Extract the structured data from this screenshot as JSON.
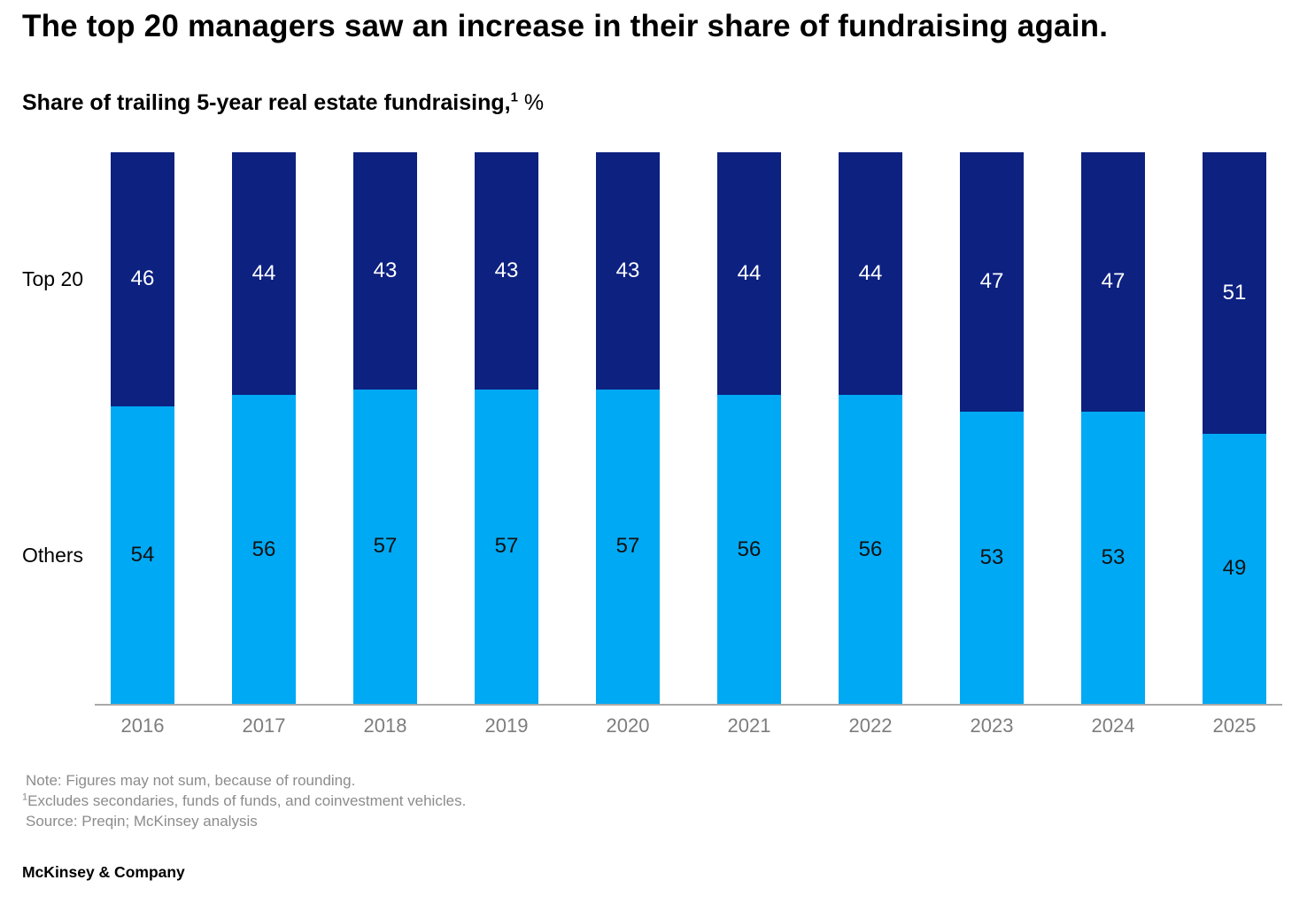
{
  "header": {
    "title": "The top 20 managers saw an increase in their share of fundraising again.",
    "subtitle_text": "Share of trailing 5-year real estate fundraising,",
    "subtitle_footnote_marker": "1",
    "subtitle_unit": " %"
  },
  "chart_data": {
    "type": "bar",
    "stacked": true,
    "title": "Share of trailing 5-year real estate fundraising, %",
    "categories": [
      "2016",
      "2017",
      "2018",
      "2019",
      "2020",
      "2021",
      "2022",
      "2023",
      "2024",
      "2025"
    ],
    "series": [
      {
        "name": "Top 20",
        "color": "#0c2180",
        "label_color": "#ffffff",
        "values": [
          46,
          44,
          43,
          43,
          43,
          44,
          44,
          47,
          47,
          51
        ]
      },
      {
        "name": "Others",
        "color": "#00a9f4",
        "label_color": "#111111",
        "values": [
          54,
          56,
          57,
          57,
          57,
          56,
          56,
          53,
          53,
          49
        ]
      }
    ],
    "ylim": [
      0,
      100
    ],
    "grid": false,
    "legend_position": "left-row-labels",
    "colors": {
      "axis_line": "#a9a9a9",
      "tick_label": "#7d7d7d"
    }
  },
  "notes": {
    "line1": "Note: Figures may not sum, because of rounding.",
    "line2_sup": "1",
    "line2": "Excludes secondaries, funds of funds, and coinvestment vehicles.",
    "line3": "Source: Preqin; McKinsey analysis"
  },
  "footer": {
    "brand": "McKinsey & Company"
  }
}
